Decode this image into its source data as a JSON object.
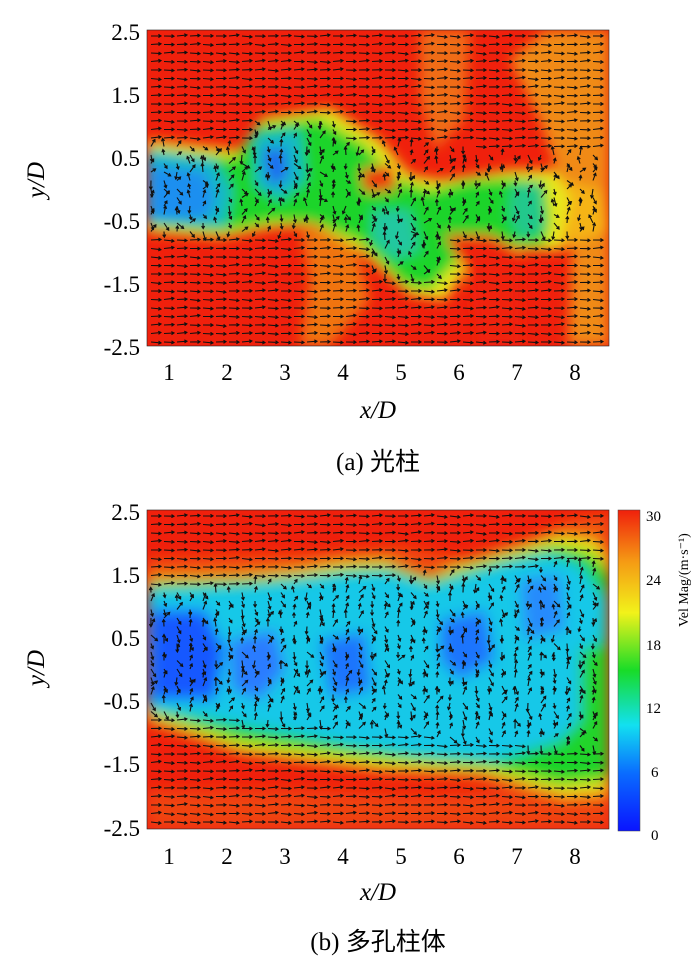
{
  "chart_data": [
    {
      "type": "heatmap",
      "caption": "(a) 光柱",
      "xlabel": "x/D",
      "ylabel": "y/D",
      "xticks": [
        "1",
        "2",
        "3",
        "4",
        "5",
        "6",
        "7",
        "8"
      ],
      "yticks": [
        "2.5",
        "1.5",
        "0.5",
        "-0.5",
        "-1.5",
        "-2.5"
      ],
      "xlim": [
        0.6,
        8.6
      ],
      "ylim": [
        -2.5,
        2.5
      ],
      "overlay": "velocity vectors",
      "low_speed_regions": [
        {
          "x": 1.0,
          "y": 0.0
        },
        {
          "x": 2.8,
          "y": 0.6
        },
        {
          "x": 4.9,
          "y": -0.7
        },
        {
          "x": 7.3,
          "y": -0.3
        }
      ]
    },
    {
      "type": "heatmap",
      "caption": "(b) 多孔柱体",
      "xlabel": "x/D",
      "ylabel": "y/D",
      "xticks": [
        "1",
        "2",
        "3",
        "4",
        "5",
        "6",
        "7",
        "8"
      ],
      "yticks": [
        "2.5",
        "1.5",
        "0.5",
        "-0.5",
        "-1.5",
        "-2.5"
      ],
      "xlim": [
        0.6,
        8.6
      ],
      "ylim": [
        -2.5,
        2.5
      ],
      "overlay": "velocity vectors",
      "colorbar": {
        "label": "Vel Mag/(m·s⁻¹)",
        "ticks": [
          "30",
          "24",
          "18",
          "12",
          "6",
          "0"
        ],
        "range": [
          0,
          30
        ]
      }
    }
  ],
  "colors": {
    "low": "#0a2bff",
    "mid_low": "#12e0f0",
    "mid": "#18dc28",
    "mid_high": "#f2f21a",
    "high": "#f0200c"
  }
}
